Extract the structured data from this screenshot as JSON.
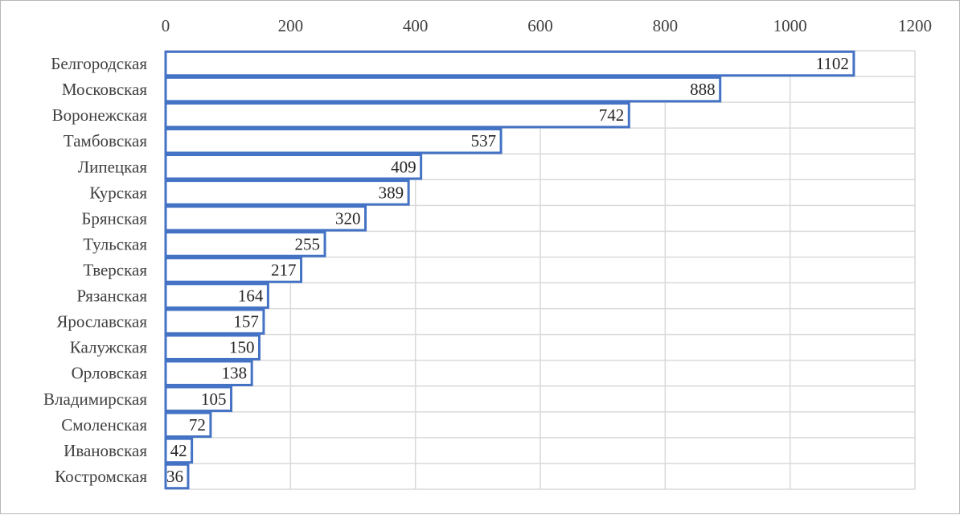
{
  "chart_data": {
    "type": "bar",
    "orientation": "horizontal",
    "title": "",
    "xlabel": "",
    "ylabel": "",
    "xlim": [
      0,
      1200
    ],
    "x_ticks": [
      0,
      200,
      400,
      600,
      800,
      1000,
      1200
    ],
    "x_axis_position": "top",
    "grid": true,
    "legend": "none",
    "categories": [
      "Белгородская",
      "Московская",
      "Воронежская",
      "Тамбовская",
      "Липецкая",
      "Курская",
      "Брянская",
      "Тульская",
      "Тверская",
      "Рязанская",
      "Ярославская",
      "Калужская",
      "Орловская",
      "Владимирская",
      "Смоленская",
      "Ивановская",
      "Костромская"
    ],
    "values": [
      1102,
      888,
      742,
      537,
      409,
      389,
      320,
      255,
      217,
      164,
      157,
      150,
      138,
      105,
      72,
      42,
      36
    ],
    "bar_fill": "#ffffff",
    "bar_outline": "#4472c4",
    "gridline_color": "#d9d9d9"
  }
}
